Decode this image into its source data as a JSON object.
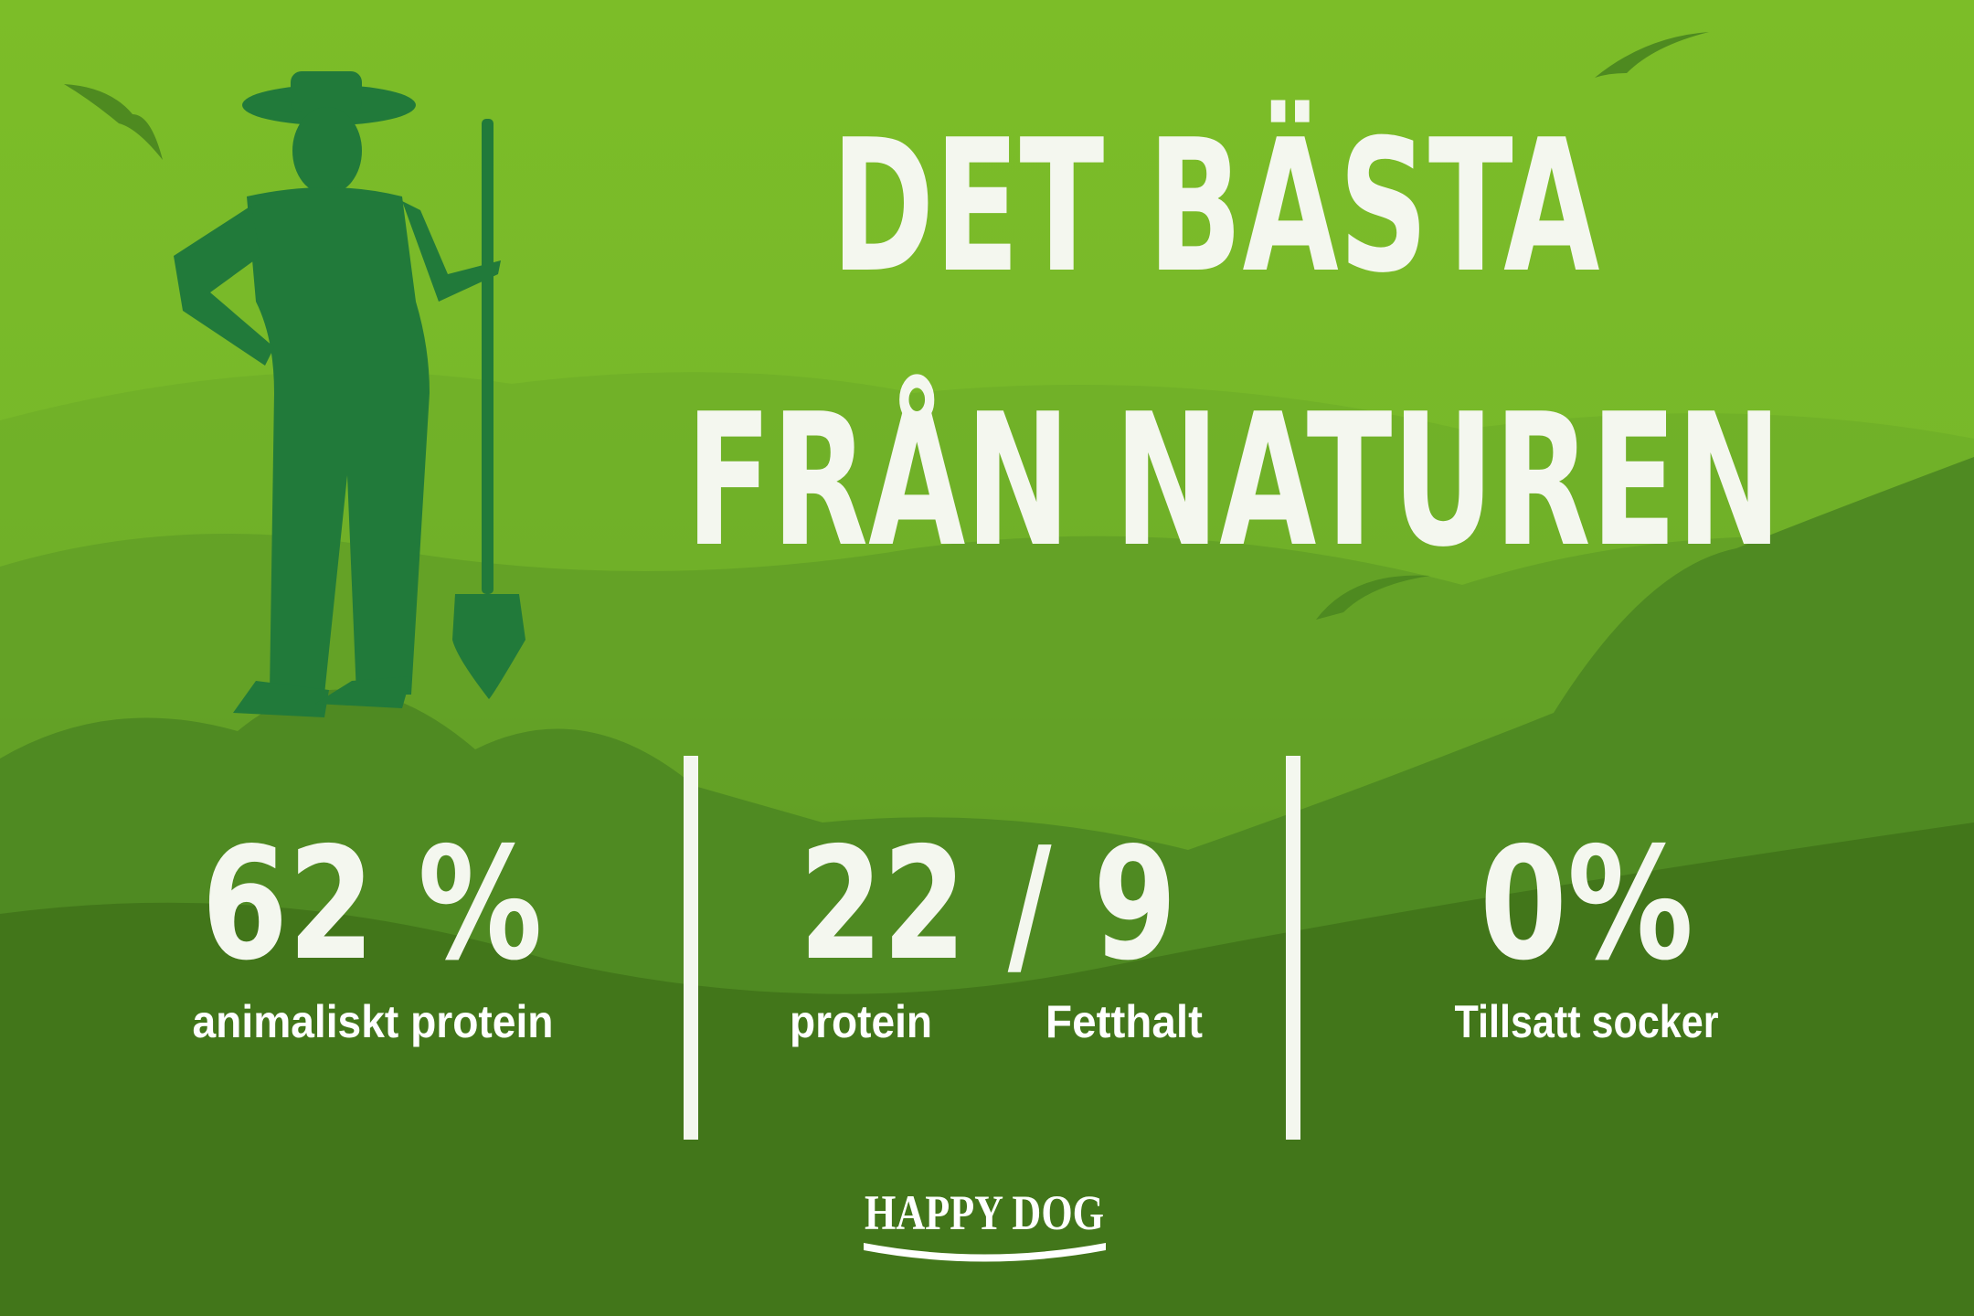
{
  "title": [
    "DET BÄSTA",
    "FRÅN NATUREN"
  ],
  "stats": [
    {
      "value": "62 %",
      "label": "animaliskt protein"
    },
    {
      "value": "22 / 9",
      "labels": [
        "protein",
        "Fetthalt"
      ]
    },
    {
      "value": "0%",
      "label": "Tillsatt socker"
    }
  ],
  "logo": "HAPPY DOG"
}
